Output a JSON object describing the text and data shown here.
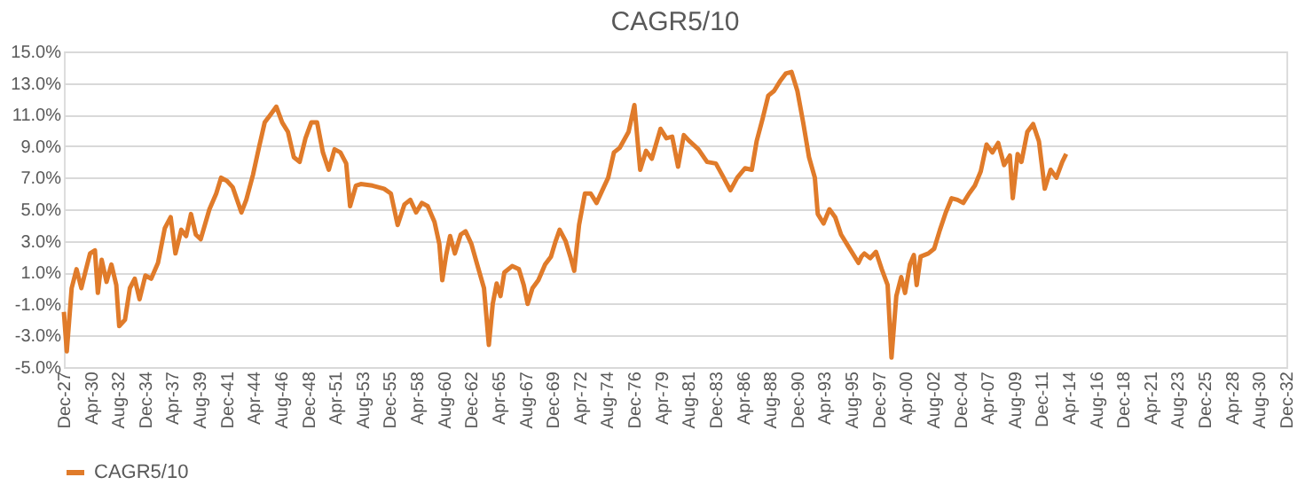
{
  "chart_data": {
    "type": "line",
    "title": "CAGR5/10",
    "x": [
      "1927-12",
      "1928-03",
      "1928-08",
      "1929-01",
      "1929-06",
      "1929-10",
      "1930-03",
      "1930-08",
      "1930-11",
      "1931-03",
      "1931-08",
      "1932-01",
      "1932-06",
      "1932-09",
      "1933-03",
      "1933-08",
      "1934-01",
      "1934-06",
      "1934-12",
      "1935-06",
      "1936-01",
      "1936-08",
      "1937-02",
      "1937-07",
      "1938-01",
      "1938-06",
      "1938-11",
      "1939-04",
      "1939-09",
      "1940-06",
      "1941-01",
      "1941-06",
      "1941-12",
      "1942-06",
      "1943-03",
      "1943-08",
      "1944-03",
      "1944-09",
      "1945-03",
      "1945-09",
      "1946-03",
      "1946-09",
      "1947-03",
      "1947-09",
      "1948-03",
      "1948-09",
      "1949-03",
      "1949-09",
      "1950-03",
      "1950-09",
      "1951-03",
      "1951-09",
      "1952-03",
      "1952-07",
      "1953-01",
      "1953-06",
      "1954-06",
      "1955-06",
      "1956-01",
      "1956-08",
      "1957-03",
      "1957-09",
      "1958-03",
      "1958-09",
      "1959-03",
      "1959-10",
      "1960-03",
      "1960-06",
      "1960-10",
      "1961-02",
      "1961-07",
      "1962-01",
      "1962-06",
      "1962-12",
      "1963-06",
      "1964-01",
      "1964-06",
      "1964-10",
      "1965-02",
      "1965-06",
      "1965-10",
      "1966-06",
      "1967-01",
      "1967-06",
      "1967-10",
      "1968-03",
      "1968-09",
      "1969-04",
      "1969-10",
      "1970-03",
      "1970-07",
      "1971-01",
      "1971-06",
      "1971-10",
      "1972-03",
      "1972-09",
      "1973-03",
      "1973-09",
      "1974-03",
      "1974-09",
      "1975-03",
      "1975-09",
      "1976-06",
      "1976-12",
      "1977-06",
      "1977-12",
      "1978-06",
      "1979-03",
      "1979-09",
      "1980-03",
      "1980-09",
      "1981-03",
      "1981-09",
      "1982-06",
      "1983-03",
      "1983-12",
      "1984-08",
      "1985-03",
      "1985-10",
      "1986-06",
      "1987-01",
      "1987-06",
      "1987-12",
      "1988-06",
      "1988-12",
      "1989-06",
      "1989-12",
      "1990-06",
      "1990-12",
      "1991-06",
      "1991-12",
      "1992-06",
      "1992-09",
      "1993-03",
      "1993-09",
      "1994-03",
      "1994-09",
      "1995-03",
      "1995-09",
      "1996-03",
      "1996-06",
      "1996-09",
      "1997-03",
      "1997-09",
      "1998-03",
      "1998-09",
      "1999-01",
      "1999-06",
      "1999-11",
      "2000-03",
      "2000-08",
      "2000-12",
      "2001-03",
      "2001-07",
      "2002-03",
      "2002-09",
      "2003-03",
      "2003-09",
      "2004-03",
      "2004-09",
      "2005-03",
      "2005-09",
      "2006-03",
      "2006-09",
      "2007-03",
      "2007-09",
      "2008-03",
      "2008-09",
      "2009-03",
      "2009-06",
      "2009-11",
      "2010-03",
      "2010-09",
      "2011-03",
      "2011-09",
      "2012-03",
      "2012-09",
      "2013-03",
      "2013-09",
      "2014-01"
    ],
    "series": [
      {
        "name": "CAGR5/10",
        "color": "#e07b2a",
        "values": [
          -1.5,
          -4.0,
          0.0,
          1.2,
          0.0,
          1.0,
          2.2,
          2.4,
          -0.3,
          1.8,
          0.4,
          1.5,
          0.2,
          -2.4,
          -2.0,
          0.0,
          0.6,
          -0.7,
          0.8,
          0.6,
          1.6,
          3.8,
          4.5,
          2.2,
          3.7,
          3.3,
          4.7,
          3.4,
          3.1,
          5.0,
          6.0,
          7.0,
          6.8,
          6.4,
          4.8,
          5.6,
          7.2,
          8.9,
          10.5,
          11.0,
          11.5,
          10.5,
          9.9,
          8.3,
          8.0,
          9.5,
          10.5,
          10.5,
          8.6,
          7.5,
          8.8,
          8.6,
          7.9,
          5.2,
          6.5,
          6.6,
          6.5,
          6.3,
          6.0,
          4.0,
          5.3,
          5.6,
          4.8,
          5.4,
          5.2,
          4.2,
          2.8,
          0.5,
          2.1,
          3.3,
          2.2,
          3.4,
          3.6,
          2.8,
          1.5,
          0.0,
          -3.6,
          -1.0,
          0.3,
          -0.5,
          1.0,
          1.4,
          1.2,
          0.2,
          -1.0,
          0.0,
          0.5,
          1.5,
          2.0,
          3.0,
          3.7,
          3.0,
          2.0,
          1.1,
          4.0,
          6.0,
          6.0,
          5.4,
          6.2,
          7.0,
          8.6,
          8.9,
          9.9,
          11.6,
          7.5,
          8.7,
          8.2,
          10.1,
          9.5,
          9.6,
          7.7,
          9.7,
          9.3,
          8.8,
          8.0,
          7.9,
          7.0,
          6.2,
          7.0,
          7.6,
          7.5,
          9.3,
          10.7,
          12.2,
          12.5,
          13.1,
          13.6,
          13.7,
          12.5,
          10.5,
          8.3,
          7.0,
          4.7,
          4.1,
          5.0,
          4.5,
          3.4,
          2.8,
          2.2,
          1.6,
          2.0,
          2.2,
          1.9,
          2.3,
          1.2,
          0.2,
          -4.4,
          -0.5,
          0.7,
          -0.3,
          1.5,
          2.1,
          0.2,
          2.0,
          2.2,
          2.5,
          3.7,
          4.8,
          5.7,
          5.6,
          5.4,
          6.0,
          6.5,
          7.4,
          9.1,
          8.6,
          9.2,
          7.8,
          8.4,
          5.7,
          8.5,
          8.0,
          9.9,
          10.4,
          9.3,
          6.3,
          7.5,
          7.0,
          8.0,
          8.5
        ]
      }
    ],
    "xlim": [
      "1927-12",
      "2032-12"
    ],
    "xticks": [
      {
        "value": "1927-12",
        "label": "Dec-27"
      },
      {
        "value": "1930-04",
        "label": "Apr-30"
      },
      {
        "value": "1932-08",
        "label": "Aug-32"
      },
      {
        "value": "1934-12",
        "label": "Dec-34"
      },
      {
        "value": "1937-04",
        "label": "Apr-37"
      },
      {
        "value": "1939-08",
        "label": "Aug-39"
      },
      {
        "value": "1941-12",
        "label": "Dec-41"
      },
      {
        "value": "1944-04",
        "label": "Apr-44"
      },
      {
        "value": "1946-08",
        "label": "Aug-46"
      },
      {
        "value": "1948-12",
        "label": "Dec-48"
      },
      {
        "value": "1951-04",
        "label": "Apr-51"
      },
      {
        "value": "1953-08",
        "label": "Aug-53"
      },
      {
        "value": "1955-12",
        "label": "Dec-55"
      },
      {
        "value": "1958-04",
        "label": "Apr-58"
      },
      {
        "value": "1960-08",
        "label": "Aug-60"
      },
      {
        "value": "1962-12",
        "label": "Dec-62"
      },
      {
        "value": "1965-04",
        "label": "Apr-65"
      },
      {
        "value": "1967-08",
        "label": "Aug-67"
      },
      {
        "value": "1969-12",
        "label": "Dec-69"
      },
      {
        "value": "1972-04",
        "label": "Apr-72"
      },
      {
        "value": "1974-08",
        "label": "Aug-74"
      },
      {
        "value": "1976-12",
        "label": "Dec-76"
      },
      {
        "value": "1979-04",
        "label": "Apr-79"
      },
      {
        "value": "1981-08",
        "label": "Aug-81"
      },
      {
        "value": "1983-12",
        "label": "Dec-83"
      },
      {
        "value": "1986-04",
        "label": "Apr-86"
      },
      {
        "value": "1988-08",
        "label": "Aug-88"
      },
      {
        "value": "1990-12",
        "label": "Dec-90"
      },
      {
        "value": "1993-04",
        "label": "Apr-93"
      },
      {
        "value": "1995-08",
        "label": "Aug-95"
      },
      {
        "value": "1997-12",
        "label": "Dec-97"
      },
      {
        "value": "2000-04",
        "label": "Apr-00"
      },
      {
        "value": "2002-08",
        "label": "Aug-02"
      },
      {
        "value": "2004-12",
        "label": "Dec-04"
      },
      {
        "value": "2007-04",
        "label": "Apr-07"
      },
      {
        "value": "2009-08",
        "label": "Aug-09"
      },
      {
        "value": "2011-12",
        "label": "Dec-11"
      },
      {
        "value": "2014-04",
        "label": "Apr-14"
      },
      {
        "value": "2016-08",
        "label": "Aug-16"
      },
      {
        "value": "2018-12",
        "label": "Dec-18"
      },
      {
        "value": "2021-04",
        "label": "Apr-21"
      },
      {
        "value": "2023-08",
        "label": "Aug-23"
      },
      {
        "value": "2025-12",
        "label": "Dec-25"
      },
      {
        "value": "2028-04",
        "label": "Apr-28"
      },
      {
        "value": "2030-08",
        "label": "Aug-30"
      },
      {
        "value": "2032-12",
        "label": "Dec-32"
      }
    ],
    "ylim": [
      -5,
      15
    ],
    "yticks": [
      {
        "value": -5,
        "label": "-5.0%"
      },
      {
        "value": -3,
        "label": "-3.0%"
      },
      {
        "value": -1,
        "label": "-1.0%"
      },
      {
        "value": 1,
        "label": "1.0%"
      },
      {
        "value": 3,
        "label": "3.0%"
      },
      {
        "value": 5,
        "label": "5.0%"
      },
      {
        "value": 7,
        "label": "7.0%"
      },
      {
        "value": 9,
        "label": "9.0%"
      },
      {
        "value": 11,
        "label": "11.0%"
      },
      {
        "value": 13,
        "label": "13.0%"
      },
      {
        "value": 15,
        "label": "15.0%"
      }
    ],
    "grid": "y",
    "legend": "bottom",
    "marker": "none",
    "line_style": "solid"
  }
}
